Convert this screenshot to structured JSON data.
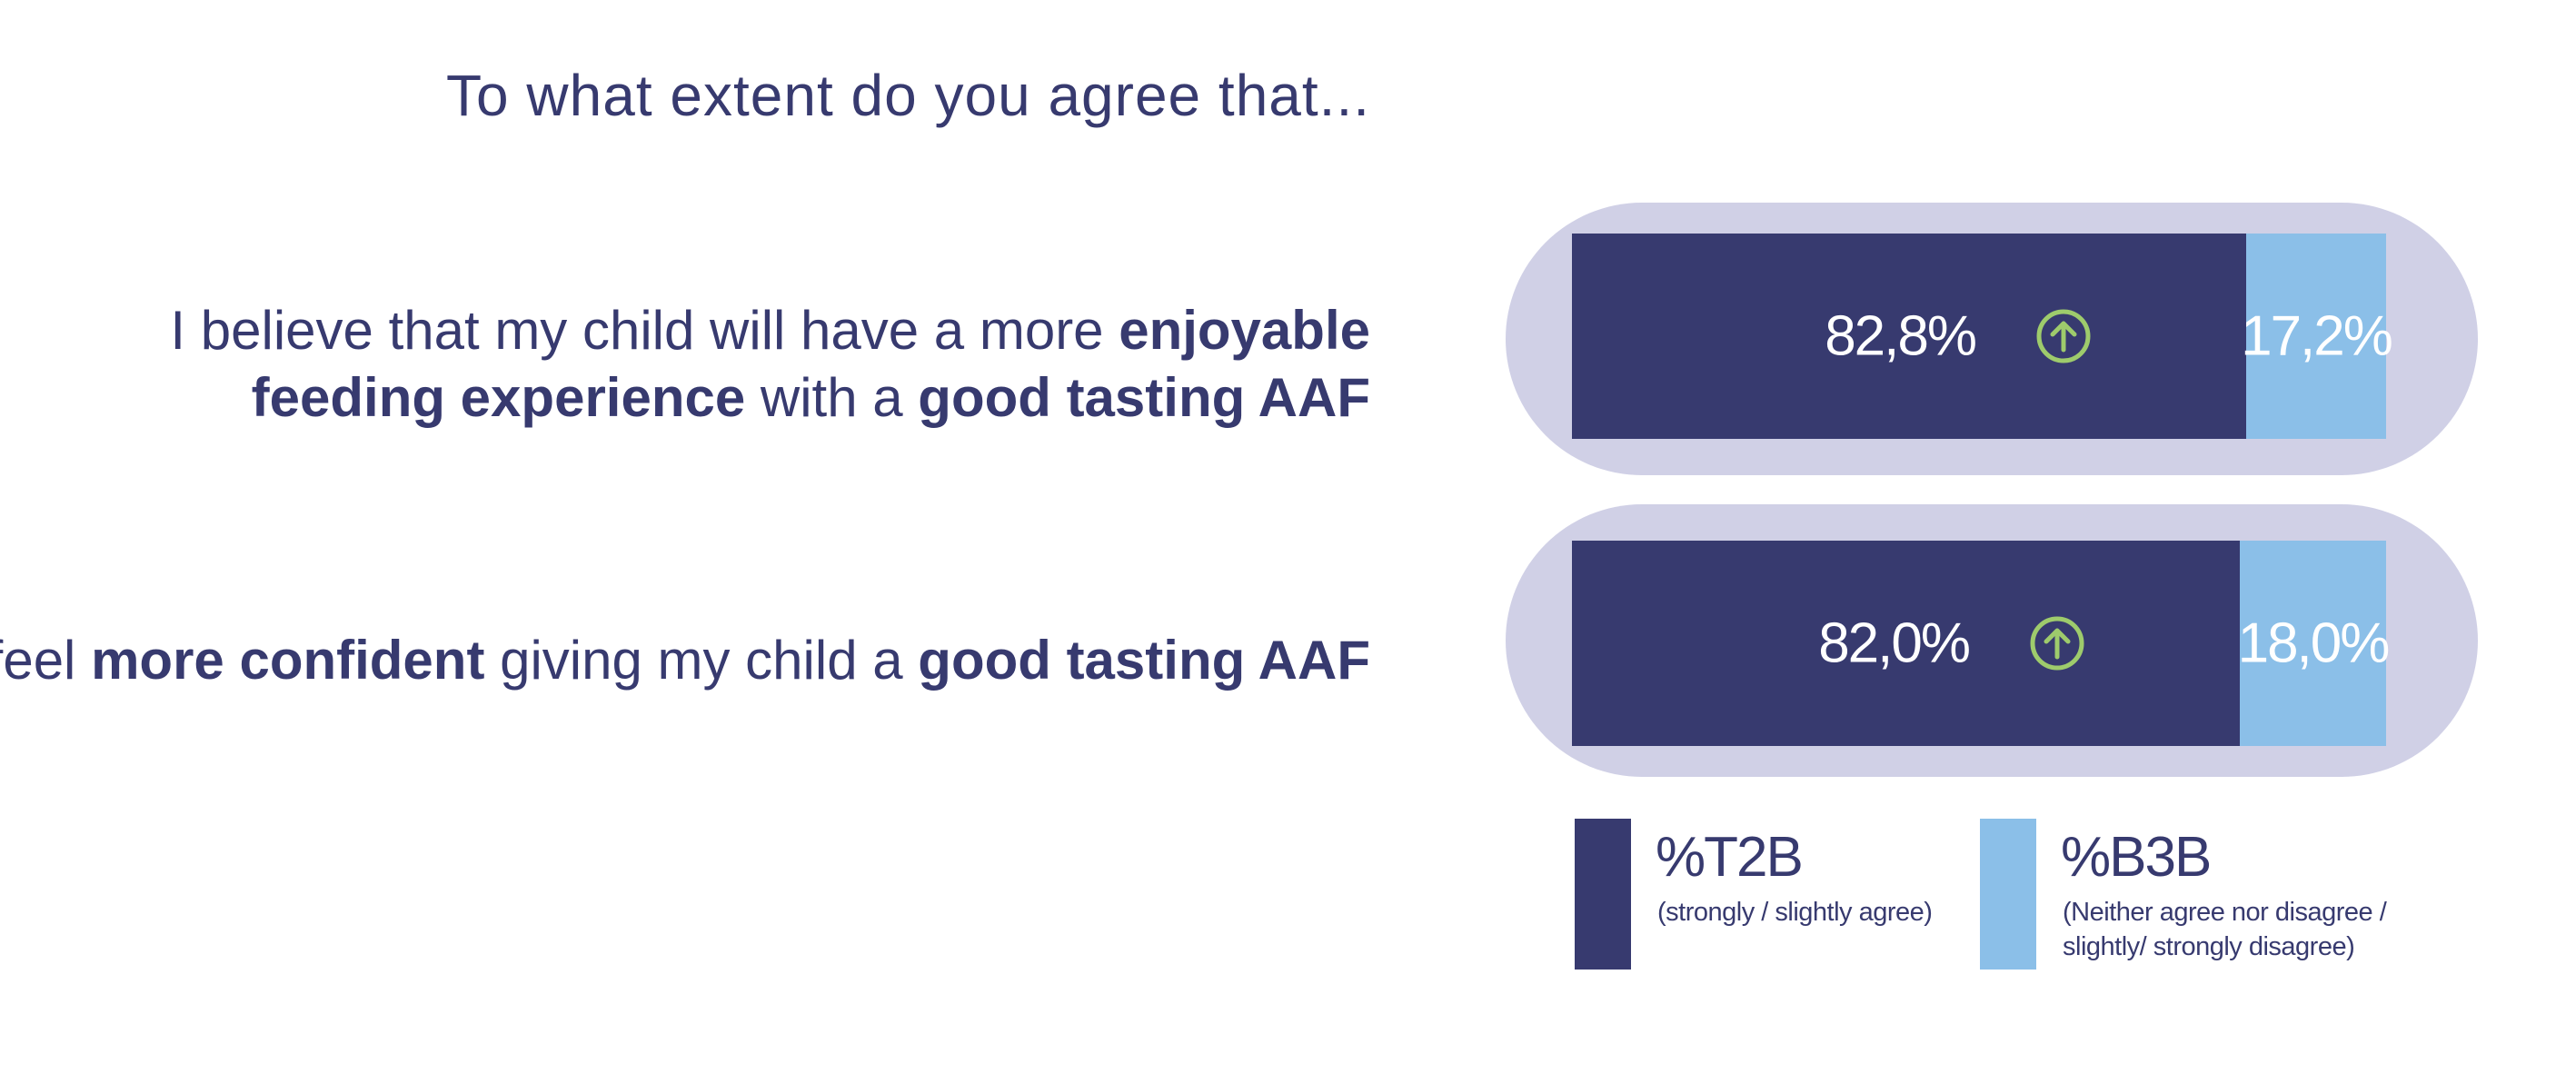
{
  "question": "To what extent do you agree that...",
  "statements": [
    {
      "pre": "I believe that my child will have a more ",
      "b1": "enjoyable",
      "mid1": "",
      "b2": "feeding experience",
      "mid2": " with a ",
      "b3": "good tasting AAF"
    },
    {
      "pre": "I feel ",
      "b1": "more confident",
      "mid1": " giving my child a ",
      "b2": "good tasting AAF"
    }
  ],
  "chart_data": {
    "type": "bar",
    "orientation": "horizontal-stacked",
    "categories": [
      "I believe that my child will have a more enjoyable feeding experience with a good tasting AAF",
      "I feel more confident giving my child a good tasting AAF"
    ],
    "series": [
      {
        "name": "%T2B",
        "values": [
          82.8,
          82.0
        ],
        "labels": [
          "82,8%",
          "82,0%"
        ],
        "color": "#373a6f",
        "icon": "arrow-up-circle-icon",
        "icon_color": "#9ecb6c"
      },
      {
        "name": "%B3B",
        "values": [
          17.2,
          18.0
        ],
        "labels": [
          "17,2%",
          "18,0%"
        ],
        "color": "#8bbfe8"
      }
    ],
    "xlim": [
      0,
      100
    ],
    "legend": [
      {
        "title": "%T2B",
        "desc": "(strongly / slightly agree)"
      },
      {
        "title": "%B3B",
        "desc": "(Neither agree nor disagree / slightly/ strongly disagree)"
      }
    ],
    "legend_placement": "bottom"
  },
  "colors": {
    "background_pill": "#d0d0e6",
    "text": "#373a6f"
  }
}
